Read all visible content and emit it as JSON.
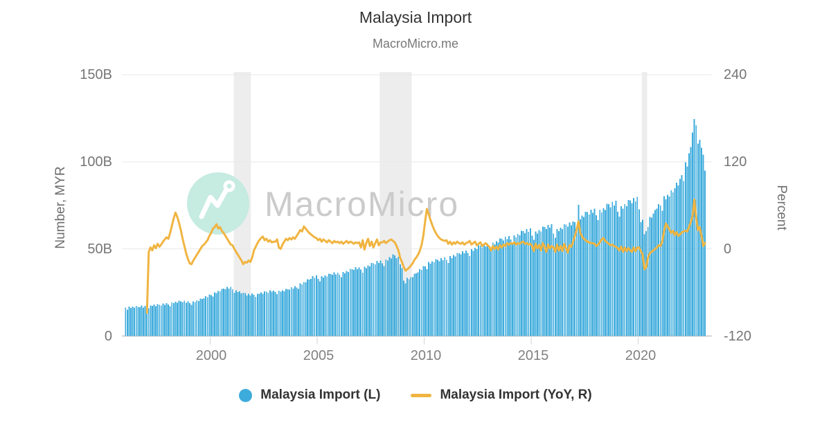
{
  "header": {
    "title": "Malaysia Import",
    "subtitle": "MacroMicro.me"
  },
  "watermark": {
    "text": "MacroMicro",
    "logo": "macromicro-mountain-logo"
  },
  "legend": {
    "items": [
      {
        "label": "Malaysia Import (L)",
        "marker": "circle",
        "color": "#3dabdc"
      },
      {
        "label": "Malaysia Import (YoY, R)",
        "marker": "line",
        "color": "#f0b441"
      }
    ]
  },
  "colors": {
    "bar": "#3dabdc",
    "line": "#f0b441",
    "gridline": "#e8e8e8",
    "axis_line": "#d2d2d2",
    "recession_band": "#ededed",
    "watermark_circle": "#c6ebe1",
    "watermark_text": "#cbcbcb",
    "tick_text": "#757575",
    "title_text": "#333333"
  },
  "chart_data": {
    "type": "bar+line",
    "title": "Malaysia Import",
    "subtitle": "MacroMicro.me",
    "frequency": "monthly",
    "grid": "horizontal-only",
    "legend_position": "bottom-center",
    "left_axis": {
      "label": "Number, MYR",
      "range": [
        0,
        150
      ],
      "ticks": [
        {
          "v": 150,
          "label": "150B"
        },
        {
          "v": 100,
          "label": "100B"
        },
        {
          "v": 50,
          "label": "50B"
        },
        {
          "v": 0,
          "label": "0"
        }
      ]
    },
    "right_axis": {
      "label": "Percent",
      "range": [
        -120,
        240
      ],
      "ticks": [
        {
          "v": 240,
          "label": "240"
        },
        {
          "v": 120,
          "label": "120"
        },
        {
          "v": 0,
          "label": "0"
        },
        {
          "v": -120,
          "label": "-120"
        }
      ]
    },
    "x_axis": {
      "range_years": [
        1996,
        2023.25
      ],
      "ticks": [
        "2000",
        "2005",
        "2010",
        "2015",
        "2020"
      ]
    },
    "recession_bands_years": [
      [
        2001.1,
        2001.9
      ],
      [
        2007.92,
        2009.42
      ],
      [
        2020.17,
        2020.42
      ]
    ],
    "series": [
      {
        "name": "Malaysia Import (L)",
        "type": "bar",
        "axis": "left",
        "unit": "billion MYR",
        "start": "1996-01",
        "freq": "monthly",
        "color": "#3dabdc",
        "values": [
          16.2,
          15.1,
          16.8,
          16.0,
          16.9,
          16.3,
          17.2,
          16.6,
          16.4,
          17.4,
          16.2,
          17.3,
          17.0,
          15.8,
          17.5,
          17.2,
          18.0,
          17.1,
          18.3,
          17.8,
          17.5,
          18.6,
          17.9,
          18.8,
          18.0,
          17.0,
          19.2,
          18.8,
          19.6,
          19.0,
          20.2,
          19.8,
          19.4,
          20.3,
          19.1,
          19.9,
          18.8,
          17.9,
          19.9,
          19.5,
          20.4,
          20.1,
          21.4,
          21.2,
          21.6,
          22.8,
          22.3,
          23.9,
          23.4,
          22.6,
          25.1,
          24.6,
          25.9,
          25.6,
          27.1,
          27.3,
          26.8,
          28.2,
          27.2,
          28.3,
          26.9,
          24.8,
          26.3,
          25.2,
          25.6,
          24.5,
          24.9,
          24.6,
          23.3,
          24.2,
          23.3,
          24.4,
          23.6,
          22.5,
          24.3,
          24.2,
          25.1,
          24.3,
          25.6,
          25.4,
          24.9,
          26.3,
          25.4,
          26.1,
          25.3,
          24.1,
          26.0,
          25.4,
          26.2,
          25.6,
          27.0,
          26.8,
          26.6,
          28.1,
          27.2,
          28.6,
          27.8,
          27.0,
          30.2,
          29.6,
          31.0,
          30.8,
          32.6,
          32.4,
          32.8,
          34.3,
          33.4,
          34.8,
          32.8,
          31.4,
          34.4,
          33.6,
          34.8,
          34.2,
          35.8,
          35.6,
          35.2,
          36.6,
          35.4,
          36.4,
          35.2,
          33.8,
          36.8,
          36.0,
          37.4,
          36.8,
          38.6,
          38.4,
          38.0,
          39.6,
          38.4,
          39.4,
          38.2,
          36.4,
          39.8,
          39.0,
          40.6,
          40.0,
          42.0,
          41.8,
          41.2,
          43.2,
          42.0,
          43.4,
          41.8,
          40.2,
          44.0,
          43.4,
          45.2,
          44.6,
          46.8,
          46.2,
          44.8,
          45.4,
          41.2,
          39.0,
          31.8,
          30.2,
          33.4,
          32.6,
          33.8,
          33.8,
          35.8,
          36.0,
          36.6,
          38.4,
          38.0,
          40.2,
          40.0,
          38.4,
          42.6,
          41.6,
          43.0,
          42.4,
          44.2,
          43.8,
          43.0,
          44.8,
          43.6,
          45.2,
          43.8,
          42.0,
          45.8,
          44.8,
          46.4,
          45.6,
          47.6,
          47.4,
          46.8,
          48.6,
          47.4,
          49.0,
          47.6,
          45.8,
          49.8,
          48.8,
          50.6,
          49.8,
          52.0,
          51.8,
          50.8,
          52.8,
          51.4,
          53.0,
          51.4,
          49.4,
          53.6,
          52.6,
          54.4,
          53.6,
          56.0,
          55.8,
          54.8,
          57.0,
          55.6,
          57.4,
          55.4,
          53.2,
          57.8,
          56.6,
          58.6,
          57.8,
          60.4,
          60.2,
          59.0,
          61.4,
          59.8,
          61.8,
          57.6,
          55.2,
          60.0,
          58.8,
          60.8,
          60.0,
          62.8,
          62.6,
          61.4,
          63.8,
          62.2,
          64.2,
          58.8,
          56.4,
          61.4,
          60.2,
          62.2,
          61.4,
          64.2,
          64.0,
          62.8,
          65.2,
          63.6,
          65.8,
          65.4,
          62.8,
          75.2,
          67.0,
          69.2,
          68.4,
          71.4,
          71.2,
          69.8,
          72.6,
          70.8,
          73.2,
          69.4,
          66.6,
          72.6,
          71.0,
          73.4,
          72.4,
          75.8,
          75.6,
          74.0,
          77.0,
          75.0,
          77.6,
          71.4,
          68.6,
          74.6,
          73.2,
          75.6,
          74.6,
          78.0,
          77.8,
          76.2,
          79.2,
          77.2,
          79.8,
          72.8,
          65.4,
          66.8,
          58.4,
          60.2,
          62.6,
          68.4,
          68.0,
          70.4,
          72.4,
          73.2,
          75.6,
          75.0,
          72.0,
          80.2,
          78.4,
          81.0,
          80.0,
          83.6,
          82.4,
          84.8,
          88.0,
          86.4,
          90.2,
          92.4,
          89.0,
          99.8,
          97.4,
          105.0,
          108.4,
          116.8,
          124.6,
          121.0,
          110.4,
          112.6,
          108.0,
          104.2,
          95.0
        ]
      },
      {
        "name": "Malaysia Import (YoY, R)",
        "type": "line",
        "axis": "right",
        "unit": "percent",
        "start": "1997-01",
        "freq": "monthly",
        "color": "#f0b441",
        "values": [
          -88,
          -4,
          2,
          -2,
          5,
          1,
          7,
          3,
          6,
          10,
          13,
          16,
          14,
          22,
          32,
          42,
          50,
          44,
          36,
          26,
          14,
          4,
          -6,
          -14,
          -20,
          -21,
          -16,
          -12,
          -8,
          -4,
          0,
          4,
          6,
          9,
          12,
          18,
          22,
          28,
          30,
          34,
          28,
          30,
          25,
          22,
          18,
          14,
          10,
          6,
          5,
          0,
          -4,
          -8,
          -12,
          -16,
          -21,
          -18,
          -19,
          -16,
          -18,
          -12,
          -2,
          3,
          8,
          12,
          15,
          17,
          12,
          14,
          10,
          12,
          9,
          10,
          10,
          13,
          2,
          0,
          6,
          10,
          14,
          12,
          15,
          13,
          16,
          14,
          18,
          22,
          26,
          24,
          31,
          28,
          25,
          22,
          20,
          18,
          16,
          15,
          12,
          14,
          10,
          13,
          11,
          9,
          12,
          10,
          8,
          11,
          9,
          10,
          8,
          10,
          7,
          9,
          11,
          8,
          10,
          9,
          7,
          9,
          8,
          9,
          2,
          12,
          -1,
          8,
          14,
          4,
          10,
          2,
          8,
          13,
          5,
          9,
          9,
          11,
          8,
          10,
          12,
          13,
          11,
          9,
          4,
          -2,
          -12,
          -18,
          -25,
          -30,
          -28,
          -26,
          -23,
          -20,
          -15,
          -12,
          -8,
          -3,
          5,
          18,
          38,
          55,
          48,
          40,
          33,
          27,
          22,
          18,
          15,
          13,
          12,
          11,
          12,
          7,
          10,
          6,
          9,
          7,
          10,
          8,
          7,
          9,
          6,
          8,
          9,
          11,
          6,
          8,
          10,
          5,
          7,
          9,
          4,
          6,
          8,
          5,
          3,
          -2,
          4,
          0,
          3,
          -1,
          5,
          2,
          6,
          4,
          8,
          6,
          8,
          7,
          9,
          6,
          8,
          7,
          9,
          10,
          7,
          8,
          6,
          7,
          4,
          -3,
          7,
          1,
          5,
          -2,
          8,
          3,
          -4,
          6,
          1,
          4,
          2,
          -4,
          6,
          -2,
          4,
          -3,
          7,
          1,
          -5,
          5,
          3,
          10,
          18,
          27,
          38,
          22,
          17,
          14,
          12,
          10,
          9,
          8,
          8,
          7,
          4,
          6,
          9,
          13,
          15,
          11,
          9,
          7,
          5,
          6,
          4,
          3,
          1,
          -2,
          3,
          -4,
          2,
          -3,
          1,
          -2,
          -4,
          2,
          -3,
          2,
          2,
          -3,
          -8,
          -28,
          -25,
          -12,
          -6,
          -4,
          -2,
          0,
          2,
          5,
          4,
          10,
          24,
          35,
          31,
          27,
          22,
          25,
          19,
          23,
          18,
          20,
          23,
          24,
          25,
          24,
          30,
          37,
          45,
          68,
          43,
          26,
          30,
          18,
          4,
          8
        ]
      }
    ]
  }
}
